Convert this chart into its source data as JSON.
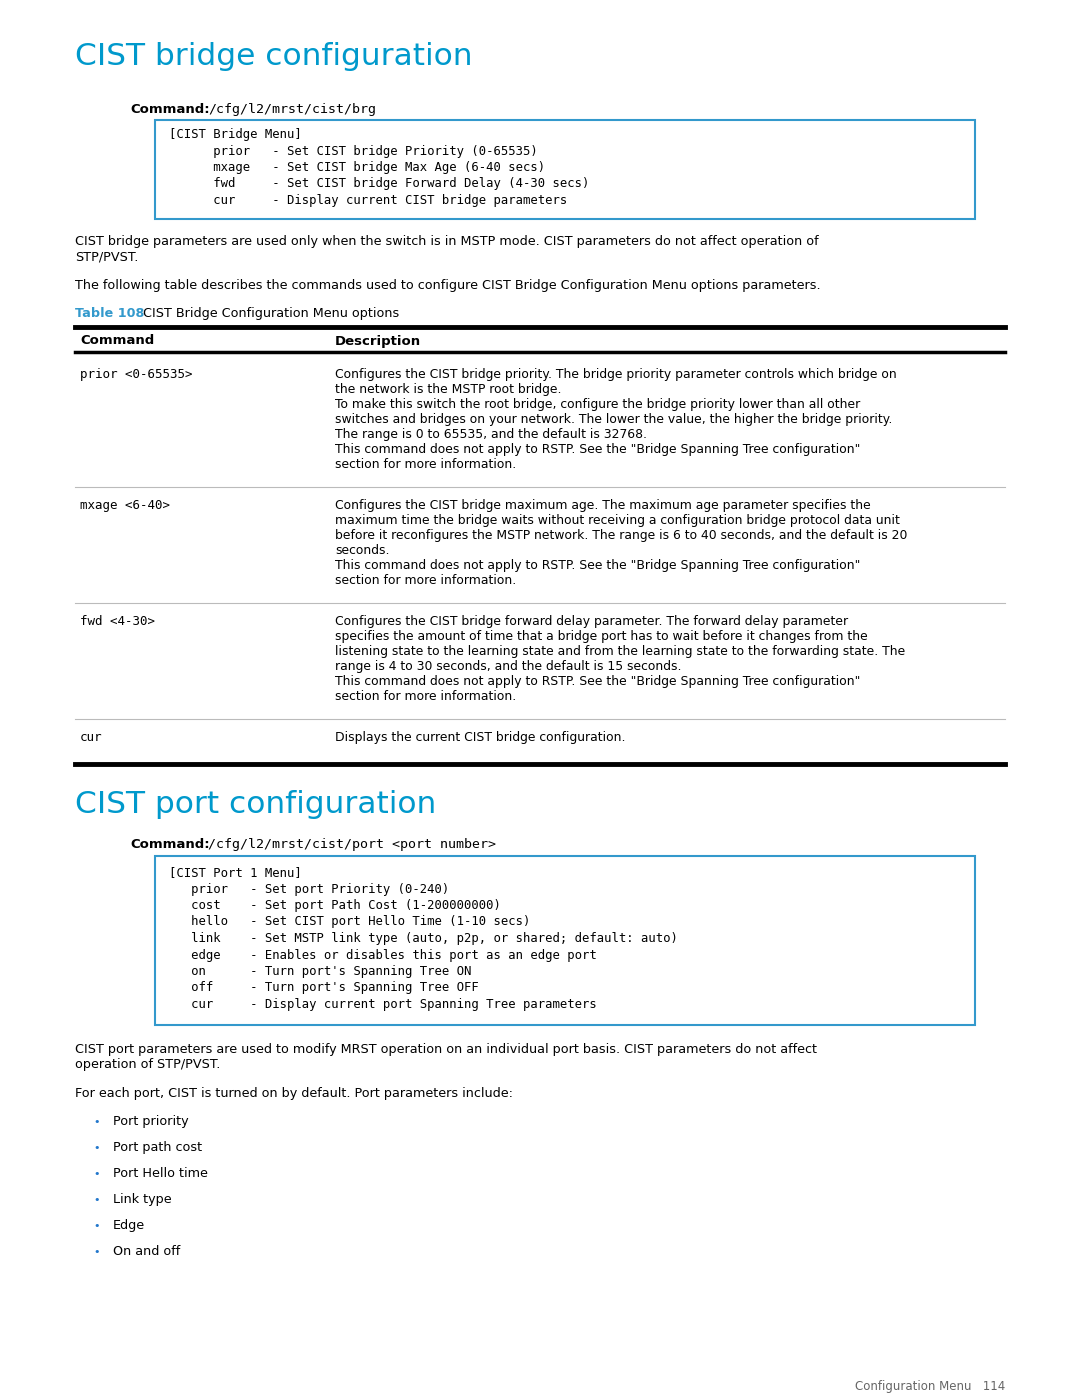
{
  "title1": "CIST bridge configuration",
  "title2": "CIST port configuration",
  "title_color": "#0099CC",
  "bg_color": "#FFFFFF",
  "command_label": "Command:",
  "command1": "/cfg/l2/mrst/cist/brg",
  "command2": "/cfg/l2/mrst/cist/port <port number>",
  "code_box1_lines": [
    "[CIST Bridge Menu]",
    "      prior   - Set CIST bridge Priority (0-65535)",
    "      mxage   - Set CIST bridge Max Age (6-40 secs)",
    "      fwd     - Set CIST bridge Forward Delay (4-30 secs)",
    "      cur     - Display current CIST bridge parameters"
  ],
  "code_box2_lines": [
    "[CIST Port 1 Menu]",
    "   prior   - Set port Priority (0-240)",
    "   cost    - Set port Path Cost (1-200000000)",
    "   hello   - Set CIST port Hello Time (1-10 secs)",
    "   link    - Set MSTP link type (auto, p2p, or shared; default: auto)",
    "   edge    - Enables or disables this port as an edge port",
    "   on      - Turn port's Spanning Tree ON",
    "   off     - Turn port's Spanning Tree OFF",
    "   cur     - Display current port Spanning Tree parameters"
  ],
  "code_box_border": "#3399CC",
  "para1": "CIST bridge parameters are used only when the switch is in MSTP mode. CIST parameters do not affect operation of\nSTP/PVST.",
  "para2": "The following table describes the commands used to configure CIST Bridge Configuration Menu options parameters.",
  "table_label_color": "#3399CC",
  "table_number": "Table 108",
  "table_title": "CIST Bridge Configuration Menu options",
  "col1_header": "Command",
  "col2_header": "Description",
  "rows": [
    {
      "cmd": "prior <0-65535>",
      "desc_lines": [
        "Configures the CIST bridge priority. The bridge priority parameter controls which bridge on",
        "the network is the MSTP root bridge.",
        "To make this switch the root bridge, configure the bridge priority lower than all other",
        "switches and bridges on your network. The lower the value, the higher the bridge priority.",
        "The range is 0 to 65535, and the default is 32768.",
        "This command does not apply to RSTP. See the \"Bridge Spanning Tree configuration\"",
        "section for more information."
      ]
    },
    {
      "cmd": "mxage <6-40>",
      "desc_lines": [
        "Configures the CIST bridge maximum age. The maximum age parameter specifies the",
        "maximum time the bridge waits without receiving a configuration bridge protocol data unit",
        "before it reconfigures the MSTP network. The range is 6 to 40 seconds, and the default is 20",
        "seconds.",
        "This command does not apply to RSTP. See the \"Bridge Spanning Tree configuration\"",
        "section for more information."
      ]
    },
    {
      "cmd": "fwd <4-30>",
      "desc_lines": [
        "Configures the CIST bridge forward delay parameter. The forward delay parameter",
        "specifies the amount of time that a bridge port has to wait before it changes from the",
        "listening state to the learning state and from the learning state to the forwarding state. The",
        "range is 4 to 30 seconds, and the default is 15 seconds.",
        "This command does not apply to RSTP. See the \"Bridge Spanning Tree configuration\"",
        "section for more information."
      ]
    },
    {
      "cmd": "cur",
      "desc_lines": [
        "Displays the current CIST bridge configuration."
      ]
    }
  ],
  "para3_lines": [
    "CIST port parameters are used to modify MRST operation on an individual port basis. CIST parameters do not affect",
    "operation of STP/PVST."
  ],
  "para4": "For each port, CIST is turned on by default. Port parameters include:",
  "bullets": [
    "Port priority",
    "Port path cost",
    "Port Hello time",
    "Link type",
    "Edge",
    "On and off"
  ],
  "footer": "Configuration Menu   114"
}
